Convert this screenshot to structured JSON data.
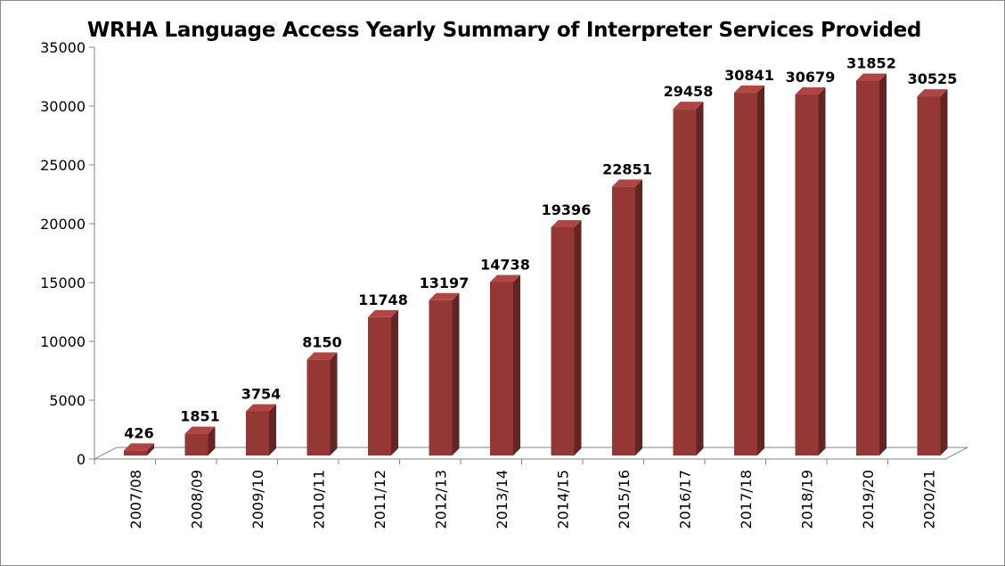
{
  "chart_data": {
    "type": "bar",
    "title": "WRHA Language Access Yearly Summary  of Interpreter Services Provided",
    "xlabel": "",
    "ylabel": "",
    "categories": [
      "2007/08",
      "2008/09",
      "2009/10",
      "2010/11",
      "2011/12",
      "2012/13",
      "2013/14",
      "2014/15",
      "2015/16",
      "2016/17",
      "2017/18",
      "2018/19",
      "2019/20",
      "2020/21"
    ],
    "values": [
      426,
      1851,
      3754,
      8150,
      11748,
      13197,
      14738,
      19396,
      22851,
      29458,
      30841,
      30679,
      31852,
      30525
    ],
    "data_labels": [
      "426",
      "1851",
      "3754",
      "8150",
      "11748",
      "13197",
      "14738",
      "19396",
      "22851",
      "29458",
      "30841",
      "30679",
      "31852",
      "30525"
    ],
    "ylim": [
      0,
      35000
    ],
    "yticks": [
      "0",
      "5000",
      "10000",
      "15000",
      "20000",
      "25000",
      "30000",
      "35000"
    ],
    "grid": false,
    "legend": "none",
    "style": "3d-column",
    "colors": {
      "bar_front": "#953735",
      "bar_side": "#632523",
      "bar_top": "#b04644",
      "axis": "#868686"
    }
  }
}
